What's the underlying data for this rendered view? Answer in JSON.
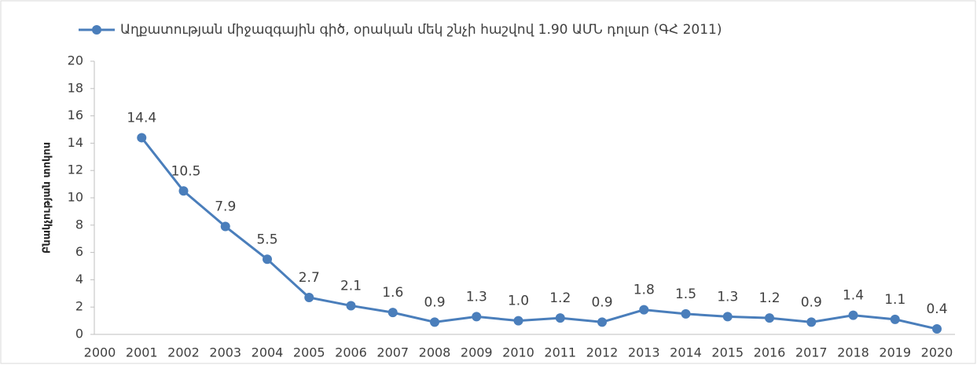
{
  "chart_data": {
    "type": "line",
    "series": [
      {
        "name": "Աղքատության միջազգային գիծ, օրական մեկ շնչի հաշվով 1.90 ԱՄՆ դոլար (ԳՀ 2011)",
        "color": "#4a7ebb",
        "values": [
          null,
          14.4,
          10.5,
          7.9,
          5.5,
          2.7,
          2.1,
          1.6,
          0.9,
          1.3,
          1.0,
          1.2,
          0.9,
          1.8,
          1.5,
          1.3,
          1.2,
          0.9,
          1.4,
          1.1,
          0.4
        ],
        "value_labels": [
          null,
          "14.4",
          "10.5",
          "7.9",
          "5.5",
          "2.7",
          "2.1",
          "1.6",
          "0.9",
          "1.3",
          "1.0",
          "1.2",
          "0.9",
          "1.8",
          "1.5",
          "1.3",
          "1.2",
          "0.9",
          "1.4",
          "1.1",
          "0.4"
        ]
      }
    ],
    "categories": [
      "2000",
      "2001",
      "2002",
      "2003",
      "2004",
      "2005",
      "2006",
      "2007",
      "2008",
      "2009",
      "2010",
      "2011",
      "2012",
      "2013",
      "2014",
      "2015",
      "2016",
      "2017",
      "2018",
      "2019",
      "2020"
    ],
    "y_label": "Բնակչության տոկոս",
    "ylim": [
      0,
      20
    ],
    "yticks": [
      0,
      2,
      4,
      6,
      8,
      10,
      12,
      14,
      16,
      18,
      20
    ],
    "legend": "top",
    "grid": false
  }
}
